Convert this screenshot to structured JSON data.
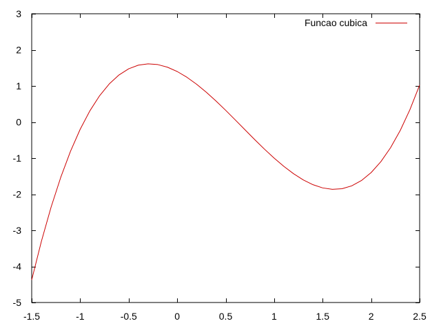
{
  "chart_data": {
    "type": "line",
    "title": "",
    "xlabel": "",
    "ylabel": "",
    "xlim": [
      -1.5,
      2.5
    ],
    "ylim": [
      -5,
      3
    ],
    "xticks": [
      -1.5,
      -1,
      -0.5,
      0,
      0.5,
      1,
      1.5,
      2,
      2.5
    ],
    "yticks": [
      -5,
      -4,
      -3,
      -2,
      -1,
      0,
      1,
      2,
      3
    ],
    "xtick_labels": [
      "-1.5",
      "-1",
      "-0.5",
      "0",
      "0.5",
      "1",
      "1.5",
      "2",
      "2.5"
    ],
    "ytick_labels": [
      "-5",
      "-4",
      "-3",
      "-2",
      "-1",
      "0",
      "1",
      "2",
      "3"
    ],
    "grid": false,
    "legend_position": "top-right",
    "series": [
      {
        "name": "Funcao cubica",
        "color": "#cc0000",
        "x": [
          -1.5,
          -1.4,
          -1.3,
          -1.2,
          -1.1,
          -1.0,
          -0.9,
          -0.8,
          -0.7,
          -0.6,
          -0.5,
          -0.4,
          -0.3,
          -0.2,
          -0.1,
          0.0,
          0.1,
          0.2,
          0.3,
          0.4,
          0.5,
          0.6,
          0.7,
          0.8,
          0.9,
          1.0,
          1.1,
          1.2,
          1.3,
          1.4,
          1.5,
          1.6,
          1.7,
          1.8,
          1.9,
          2.0,
          2.1,
          2.2,
          2.3,
          2.4,
          2.5
        ],
        "y": [
          -4.375,
          -3.304,
          -2.357,
          -1.528,
          -0.811,
          -0.2,
          0.311,
          0.728,
          1.057,
          1.304,
          1.475,
          1.576,
          1.613,
          1.592,
          1.519,
          1.4,
          1.241,
          1.048,
          0.827,
          0.584,
          0.325,
          0.056,
          -0.217,
          -0.488,
          -0.751,
          -1.0,
          -1.229,
          -1.432,
          -1.603,
          -1.736,
          -1.825,
          -1.864,
          -1.847,
          -1.768,
          -1.621,
          -1.4,
          -1.099,
          -0.712,
          -0.233,
          0.344,
          1.025
        ]
      }
    ]
  }
}
